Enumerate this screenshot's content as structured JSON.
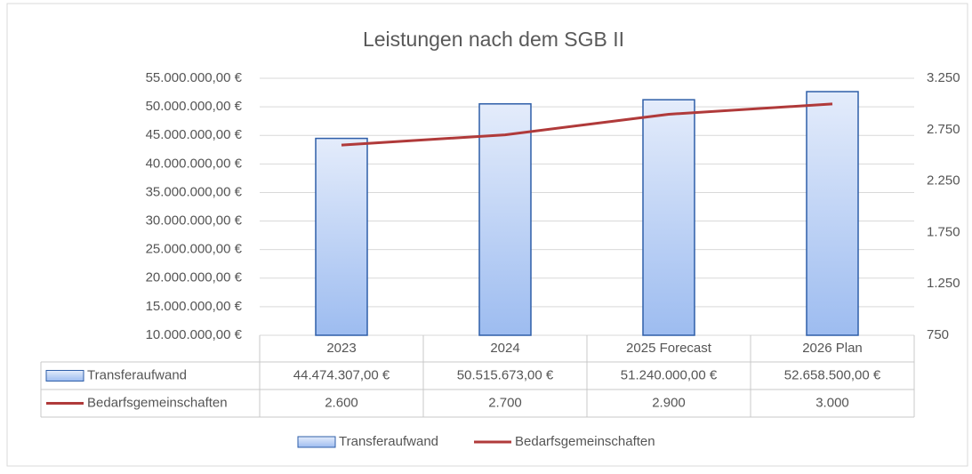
{
  "chart_data": {
    "type": "bar-line",
    "title": "Leistungen nach dem SGB II",
    "categories": [
      "2023",
      "2024",
      "2025 Forecast",
      "2026 Plan"
    ],
    "series": [
      {
        "name": "Transferaufwand",
        "type": "bar",
        "color": "#2e5ea8",
        "values": [
          44474307,
          50515673,
          51240000,
          52658500
        ],
        "value_labels": [
          "44.474.307,00 €",
          "50.515.673,00 €",
          "51.240.000,00 €",
          "52.658.500,00 €"
        ]
      },
      {
        "name": "Bedarfsgemeinschaften",
        "type": "line",
        "axis": "y2",
        "color": "#b03a3a",
        "values": [
          2600,
          2700,
          2900,
          3000
        ],
        "value_labels": [
          "2.600",
          "2.700",
          "2.900",
          "3.000"
        ]
      }
    ],
    "ylim": [
      10000000,
      55000000
    ],
    "yticks": [
      {
        "value": 10000000,
        "label": "10.000.000,00 €"
      },
      {
        "value": 15000000,
        "label": "15.000.000,00 €"
      },
      {
        "value": 20000000,
        "label": "20.000.000,00 €"
      },
      {
        "value": 25000000,
        "label": "25.000.000,00 €"
      },
      {
        "value": 30000000,
        "label": "30.000.000,00 €"
      },
      {
        "value": 35000000,
        "label": "35.000.000,00 €"
      },
      {
        "value": 40000000,
        "label": "40.000.000,00 €"
      },
      {
        "value": 45000000,
        "label": "45.000.000,00 €"
      },
      {
        "value": 50000000,
        "label": "50.000.000,00 €"
      },
      {
        "value": 55000000,
        "label": "55.000.000,00 €"
      }
    ],
    "y2lim": [
      750,
      3250
    ],
    "y2ticks": [
      750,
      {
        "value": 1250,
        "label": "1.250"
      },
      {
        "value": 1750,
        "label": "1.750"
      },
      {
        "value": 2250,
        "label": "2.250"
      },
      {
        "value": 2750,
        "label": "2.750"
      },
      {
        "value": 3250,
        "label": "3.250"
      }
    ],
    "grid": true
  }
}
